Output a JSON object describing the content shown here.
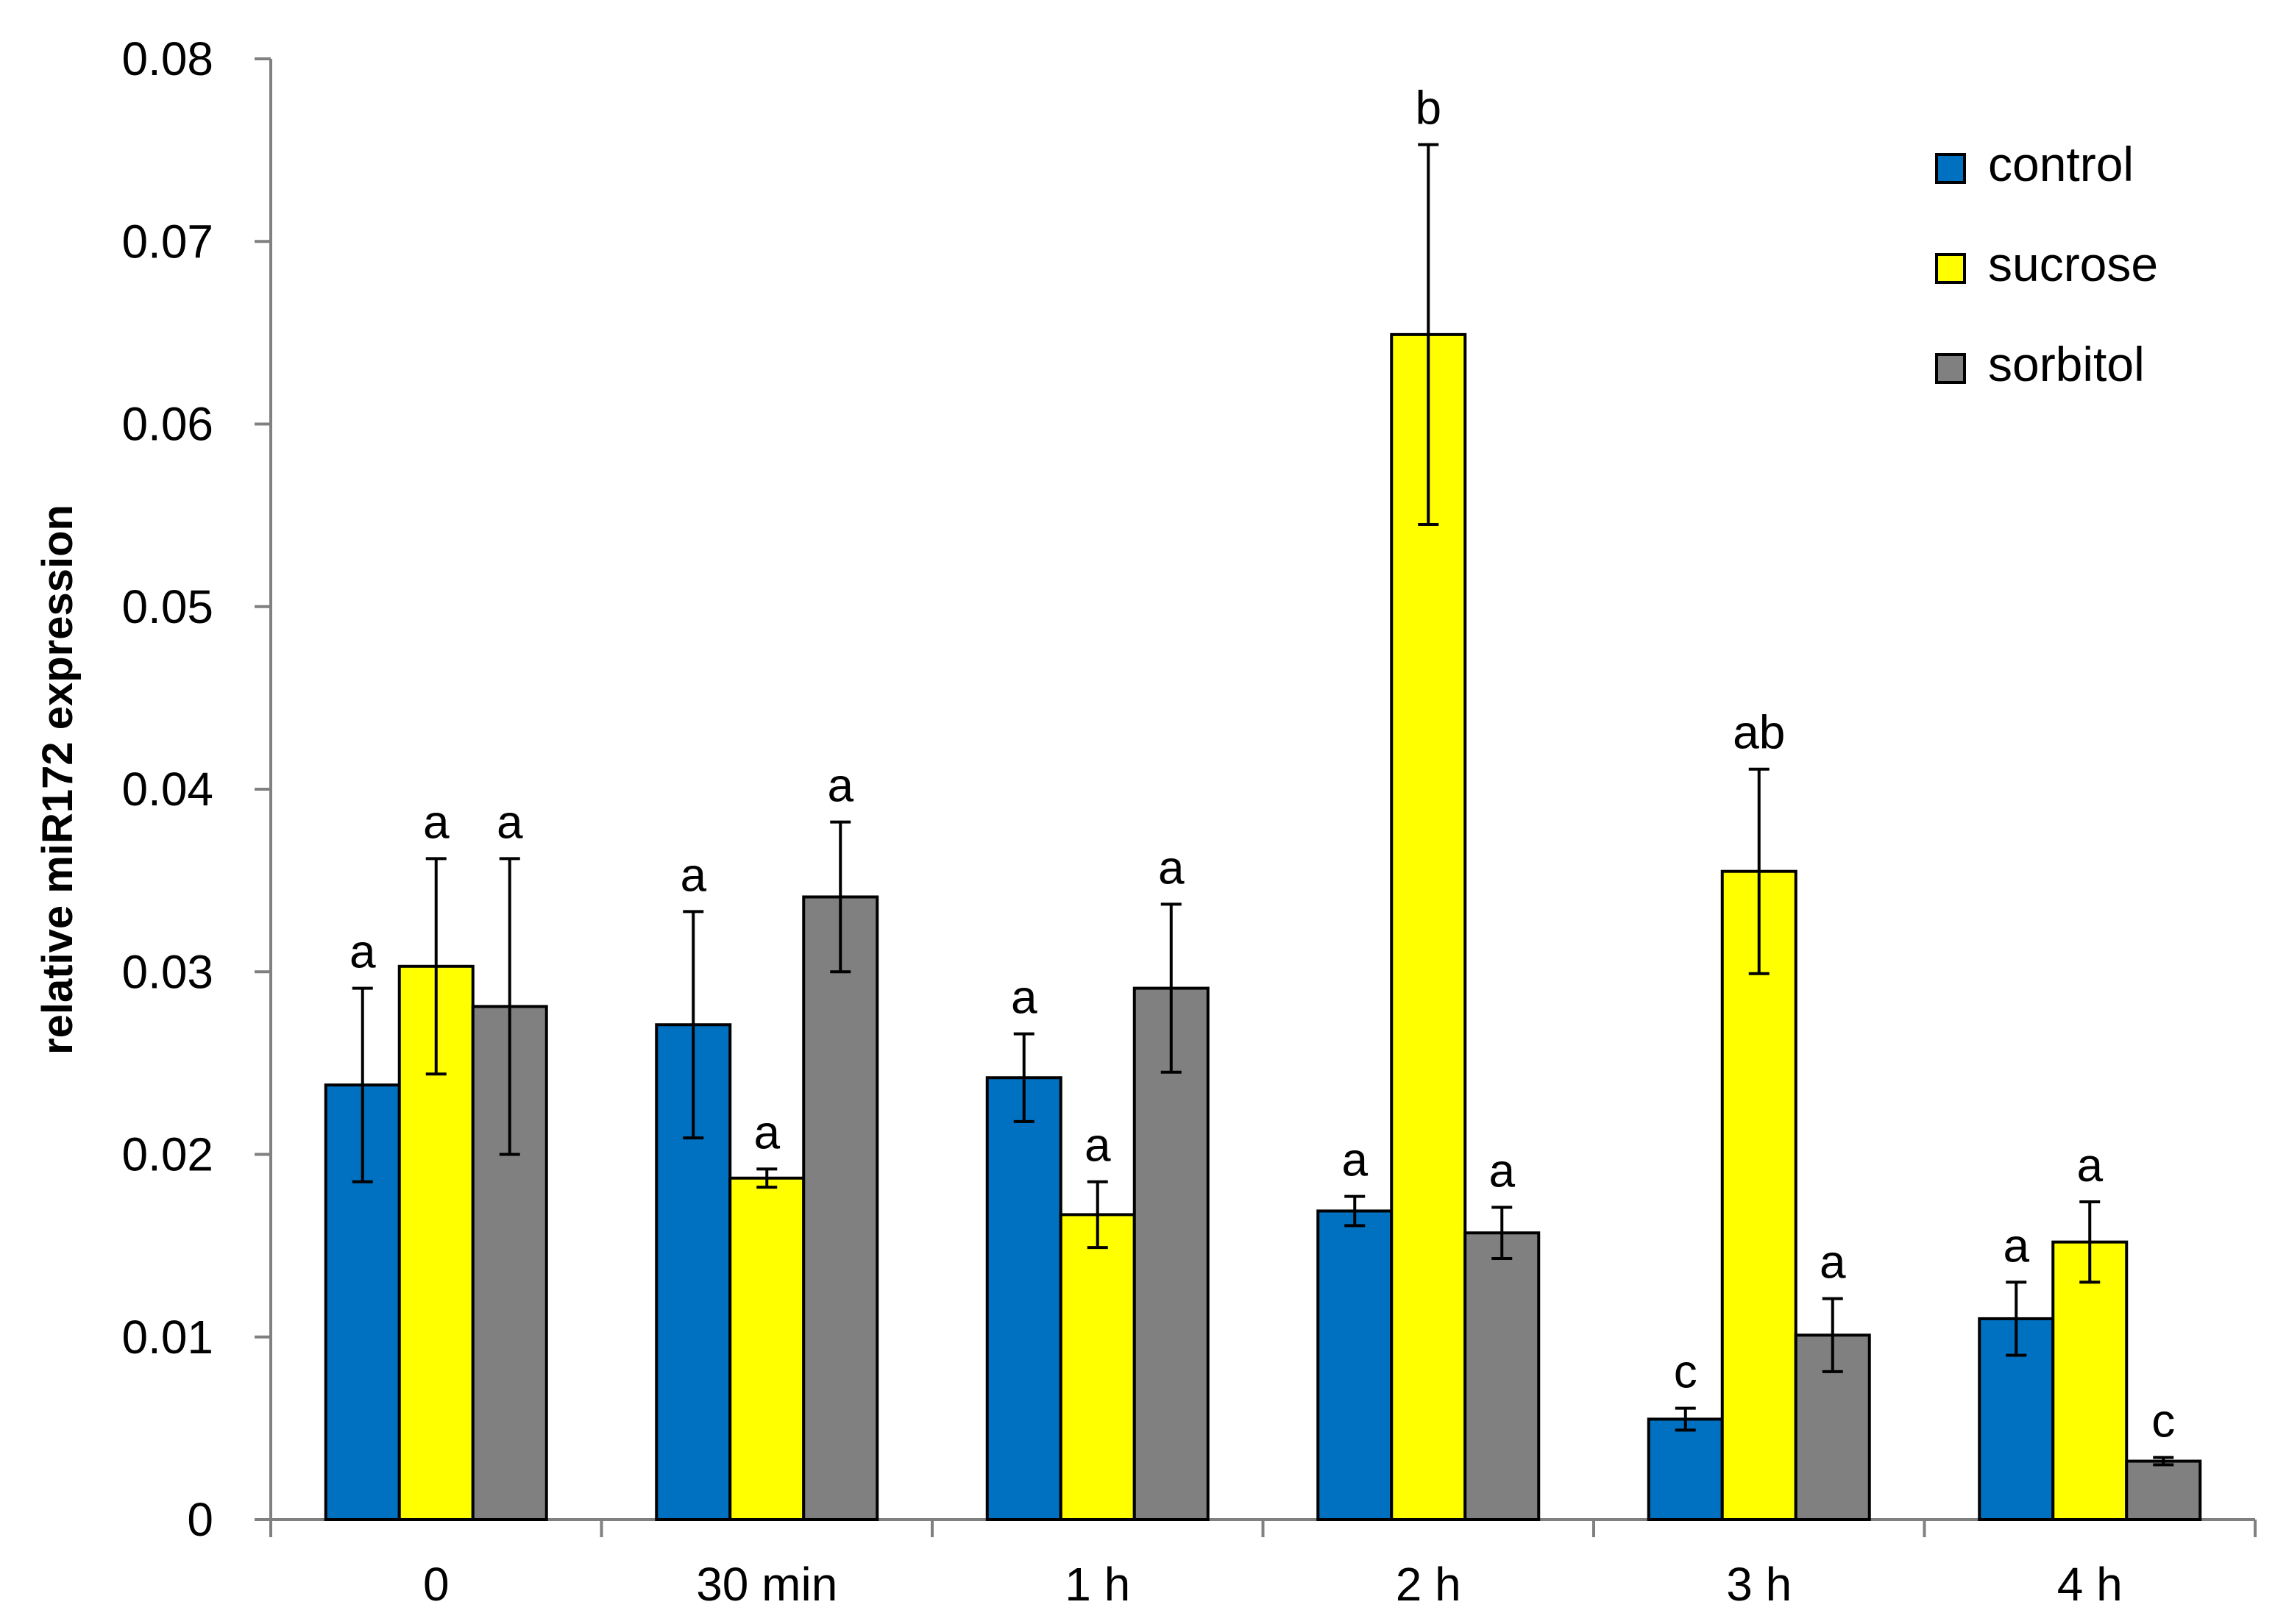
{
  "chart_data": {
    "type": "bar",
    "title": "",
    "xlabel": "",
    "ylabel": "relative miR172 expression",
    "ylim": [
      0,
      0.08
    ],
    "yticks": [
      "0",
      "0.01",
      "0.02",
      "0.03",
      "0.04",
      "0.05",
      "0.06",
      "0.07",
      "0.08"
    ],
    "categories": [
      "0",
      "30 min",
      "1 h",
      "2 h",
      "3 h",
      "4 h"
    ],
    "legend_position": "top-right",
    "colors": {
      "control": "#0070C0",
      "sucrose": "#FFFF00",
      "sorbitol": "#808080"
    },
    "series": [
      {
        "name": "control",
        "values": [
          0.0238,
          0.0271,
          0.0242,
          0.0169,
          0.0055,
          0.011
        ],
        "errors": [
          0.0053,
          0.0062,
          0.0024,
          0.0008,
          0.0006,
          0.002
        ],
        "significance": [
          "a",
          "a",
          "a",
          "a",
          "c",
          "a"
        ]
      },
      {
        "name": "sucrose",
        "values": [
          0.0303,
          0.0187,
          0.0167,
          0.0649,
          0.0355,
          0.0152
        ],
        "errors": [
          0.0059,
          0.0005,
          0.0018,
          0.0104,
          0.0056,
          0.0022
        ],
        "significance": [
          "a",
          "a",
          "a",
          "b",
          "ab",
          "a"
        ]
      },
      {
        "name": "sorbitol",
        "values": [
          0.0281,
          0.0341,
          0.0291,
          0.0157,
          0.0101,
          0.0032
        ],
        "errors": [
          0.0081,
          0.0041,
          0.0046,
          0.0014,
          0.002,
          0.0002
        ],
        "significance": [
          "a",
          "a",
          "a",
          "a",
          "a",
          "c"
        ]
      }
    ]
  }
}
